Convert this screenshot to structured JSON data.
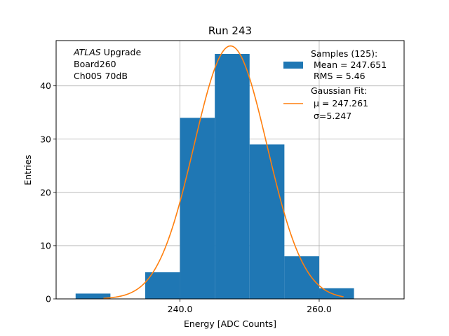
{
  "chart_data": {
    "type": "bar",
    "title": "Run 243",
    "xlabel": "Energy [ADC Counts]",
    "ylabel": "Entries",
    "xlim": [
      222.2,
      272.2
    ],
    "ylim": [
      0,
      48.5
    ],
    "xticks": [
      240.0,
      260.0
    ],
    "xtick_labels": [
      "240.0",
      "260.0"
    ],
    "yticks": [
      0,
      10,
      20,
      30,
      40
    ],
    "ytick_labels": [
      "0",
      "10",
      "20",
      "30",
      "40"
    ],
    "grid": true,
    "legend_position": "top-right",
    "bins": [
      {
        "x0": 225,
        "x1": 230,
        "count": 1
      },
      {
        "x0": 230,
        "x1": 235,
        "count": 0
      },
      {
        "x0": 235,
        "x1": 240,
        "count": 5
      },
      {
        "x0": 240,
        "x1": 245,
        "count": 34
      },
      {
        "x0": 245,
        "x1": 250,
        "count": 46
      },
      {
        "x0": 250,
        "x1": 255,
        "count": 29
      },
      {
        "x0": 255,
        "x1": 260,
        "count": 8
      },
      {
        "x0": 260,
        "x1": 265,
        "count": 2
      }
    ],
    "series": [
      {
        "kind": "histogram",
        "color": "#1f77b4",
        "legend_lines": [
          "Samples (125):",
          " Mean = 247.651",
          " RMS = 5.46"
        ]
      },
      {
        "kind": "gaussian-fit",
        "color": "#ff7f0e",
        "mu": 247.261,
        "sigma": 5.247,
        "amplitude": 47.5,
        "x_range": [
          229,
          263.5
        ],
        "legend_lines": [
          "Gaussian Fit:",
          " μ = 247.261",
          " σ=5.247"
        ]
      }
    ],
    "annotation": {
      "lines": [
        {
          "italic": "ATLAS",
          "rest": " Upgrade"
        },
        {
          "italic": "",
          "rest": " Board260"
        },
        {
          "italic": "",
          "rest": " Ch005 70dB"
        }
      ]
    }
  }
}
